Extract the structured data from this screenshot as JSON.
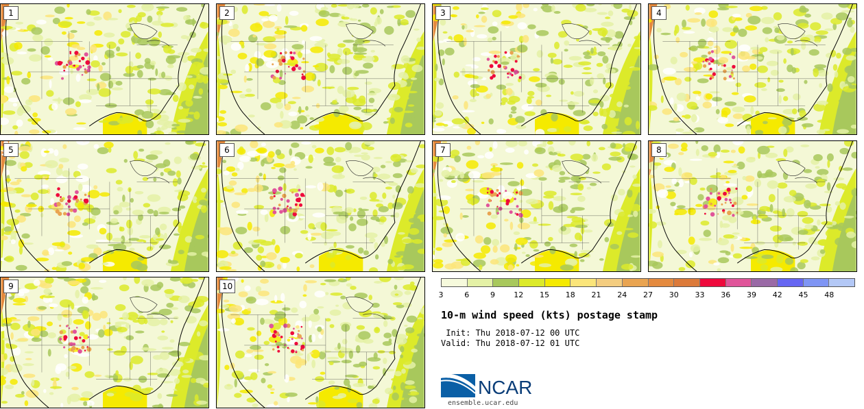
{
  "panels": [
    "1",
    "2",
    "3",
    "4",
    "5",
    "6",
    "7",
    "8",
    "9",
    "10"
  ],
  "colorbar": {
    "colors": [
      "#f6fadc",
      "#e4f1a6",
      "#a8c85c",
      "#dcea2a",
      "#f5ea00",
      "#fbe57a",
      "#f4cd80",
      "#e9a451",
      "#e48a3f",
      "#dc7a3a",
      "#ee0a3c",
      "#e0559a",
      "#9a6aa6",
      "#6666f2",
      "#7f95f4",
      "#b3c8f6"
    ],
    "ticks": [
      "3",
      "6",
      "9",
      "12",
      "15",
      "18",
      "21",
      "24",
      "27",
      "30",
      "33",
      "36",
      "39",
      "42",
      "45",
      "48"
    ]
  },
  "title": "10-m wind speed (kts) postage stamp",
  "init": " Init: Thu 2018-07-12 00 UTC",
  "valid": "Valid: Thu 2018-07-12 01 UTC",
  "logo": "NCAR",
  "site": "ensemble.ucar.edu"
}
